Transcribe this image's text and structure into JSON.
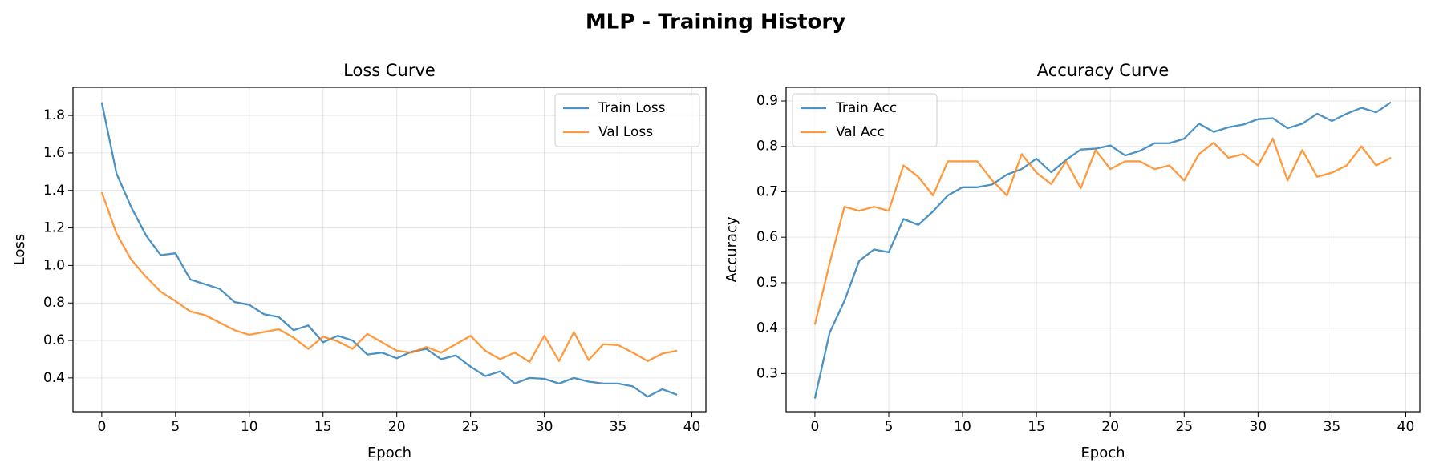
{
  "title": "MLP - Training History",
  "chart_data": [
    {
      "type": "line",
      "title": "Loss Curve",
      "x_label": "Epoch",
      "y_label": "Loss",
      "x": [
        0,
        1,
        2,
        3,
        4,
        5,
        6,
        7,
        8,
        9,
        10,
        11,
        12,
        13,
        14,
        15,
        16,
        17,
        18,
        19,
        20,
        21,
        22,
        23,
        24,
        25,
        26,
        27,
        28,
        29,
        30,
        31,
        32,
        33,
        34,
        35,
        36,
        37,
        38,
        39
      ],
      "series": [
        {
          "name": "Train Loss",
          "color": "#1f77b4",
          "values": [
            1.87,
            1.49,
            1.31,
            1.16,
            1.055,
            1.065,
            0.925,
            0.9,
            0.875,
            0.805,
            0.79,
            0.74,
            0.725,
            0.655,
            0.68,
            0.59,
            0.625,
            0.6,
            0.525,
            0.535,
            0.505,
            0.54,
            0.555,
            0.5,
            0.52,
            0.46,
            0.41,
            0.435,
            0.37,
            0.4,
            0.395,
            0.37,
            0.4,
            0.38,
            0.37,
            0.37,
            0.355,
            0.3,
            0.34,
            0.31
          ]
        },
        {
          "name": "Val Loss",
          "color": "#ff7f0e",
          "values": [
            1.39,
            1.17,
            1.03,
            0.94,
            0.86,
            0.81,
            0.755,
            0.735,
            0.695,
            0.655,
            0.63,
            0.645,
            0.66,
            0.615,
            0.555,
            0.62,
            0.595,
            0.555,
            0.635,
            0.59,
            0.545,
            0.535,
            0.565,
            0.535,
            0.58,
            0.625,
            0.545,
            0.5,
            0.535,
            0.485,
            0.625,
            0.49,
            0.645,
            0.495,
            0.58,
            0.575,
            0.535,
            0.49,
            0.53,
            0.545
          ]
        }
      ],
      "xlim": [
        -1.95,
        40.95
      ],
      "ylim": [
        0.22,
        1.95
      ],
      "xticks": [
        0,
        5,
        10,
        15,
        20,
        25,
        30,
        35,
        40
      ],
      "yticks": [
        0.4,
        0.6,
        0.8,
        {
          "value": 1,
          "label": "1.0"
        },
        1.2,
        1.4,
        1.6,
        1.8
      ],
      "grid": true,
      "legend": "upper right"
    },
    {
      "type": "line",
      "title": "Accuracy Curve",
      "x_label": "Epoch",
      "y_label": "Accuracy",
      "x": [
        0,
        1,
        2,
        3,
        4,
        5,
        6,
        7,
        8,
        9,
        10,
        11,
        12,
        13,
        14,
        15,
        16,
        17,
        18,
        19,
        20,
        21,
        22,
        23,
        24,
        25,
        26,
        27,
        28,
        29,
        30,
        31,
        32,
        33,
        34,
        35,
        36,
        37,
        38,
        39
      ],
      "series": [
        {
          "name": "Train Acc",
          "color": "#1f77b4",
          "values": [
            0.245,
            0.39,
            0.46,
            0.548,
            0.573,
            0.567,
            0.64,
            0.627,
            0.657,
            0.692,
            0.71,
            0.71,
            0.716,
            0.738,
            0.75,
            0.773,
            0.743,
            0.77,
            0.793,
            0.795,
            0.802,
            0.78,
            0.79,
            0.807,
            0.807,
            0.817,
            0.85,
            0.832,
            0.842,
            0.848,
            0.86,
            0.862,
            0.84,
            0.85,
            0.872,
            0.856,
            0.872,
            0.885,
            0.875,
            0.897
          ]
        },
        {
          "name": "Val Acc",
          "color": "#ff7f0e",
          "values": [
            0.408,
            0.543,
            0.667,
            0.658,
            0.667,
            0.658,
            0.758,
            0.733,
            0.692,
            0.767,
            0.767,
            0.767,
            0.725,
            0.692,
            0.783,
            0.742,
            0.717,
            0.767,
            0.708,
            0.792,
            0.75,
            0.767,
            0.767,
            0.75,
            0.758,
            0.725,
            0.783,
            0.808,
            0.775,
            0.783,
            0.758,
            0.817,
            0.725,
            0.792,
            0.733,
            0.742,
            0.758,
            0.8,
            0.758,
            0.775
          ]
        }
      ],
      "xlim": [
        -1.95,
        40.95
      ],
      "ylim": [
        0.216,
        0.93
      ],
      "xticks": [
        0,
        5,
        10,
        15,
        20,
        25,
        30,
        35,
        40
      ],
      "yticks": [
        0.3,
        0.4,
        0.5,
        0.6,
        0.7,
        0.8,
        0.9
      ],
      "grid": true,
      "legend": "upper left"
    }
  ]
}
